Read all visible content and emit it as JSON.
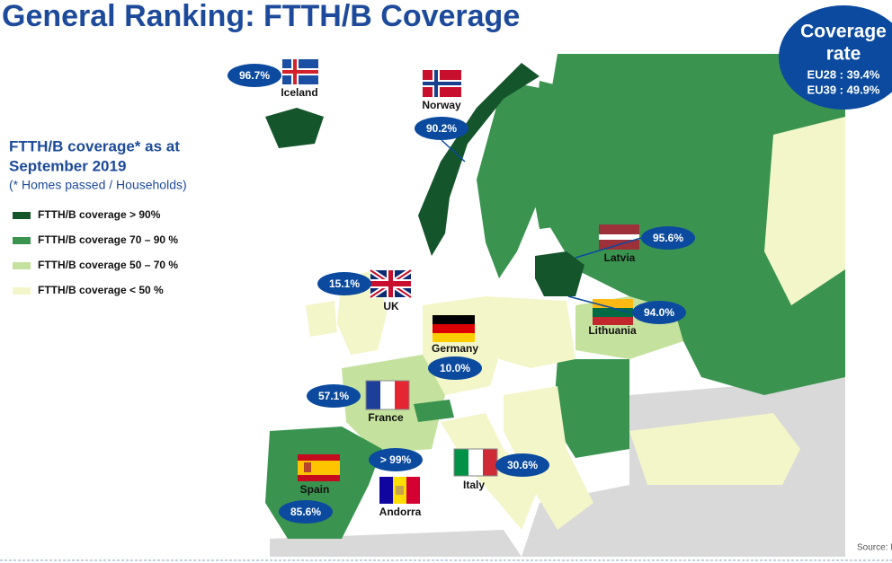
{
  "title": "General Ranking: FTTH/B Coverage",
  "coverage_box": {
    "title_lines": [
      "Coverage",
      "rate"
    ],
    "eu28": "EU28 : 39.4%",
    "eu39": "EU39 : 49.9%"
  },
  "subtitle": {
    "heading_lines": [
      "FTTH/B coverage* as at",
      "September 2019"
    ],
    "note": "(* Homes passed / Households)"
  },
  "legend": [
    {
      "label": "FTTH/B coverage > 90%",
      "color": "#15552c"
    },
    {
      "label": "FTTH/B coverage 70 – 90 %",
      "color": "#3a9450"
    },
    {
      "label": "FTTH/B coverage 50 – 70 %",
      "color": "#c4e29d"
    },
    {
      "label": "FTTH/B coverage < 50 %",
      "color": "#f3f6c8"
    }
  ],
  "countries": [
    {
      "name": "Iceland",
      "coverage": "96.7%"
    },
    {
      "name": "Norway",
      "coverage": "90.2%"
    },
    {
      "name": "Latvia",
      "coverage": "95.6%"
    },
    {
      "name": "Lithuania",
      "coverage": "94.0%"
    },
    {
      "name": "UK",
      "coverage": "15.1%"
    },
    {
      "name": "Germany",
      "coverage": "10.0%"
    },
    {
      "name": "France",
      "coverage": "57.1%"
    },
    {
      "name": "Spain",
      "coverage": "85.6%"
    },
    {
      "name": "Andorra",
      "coverage": "> 99%"
    },
    {
      "name": "Italy",
      "coverage": "30.6%"
    }
  ],
  "source": "Source: I"
}
